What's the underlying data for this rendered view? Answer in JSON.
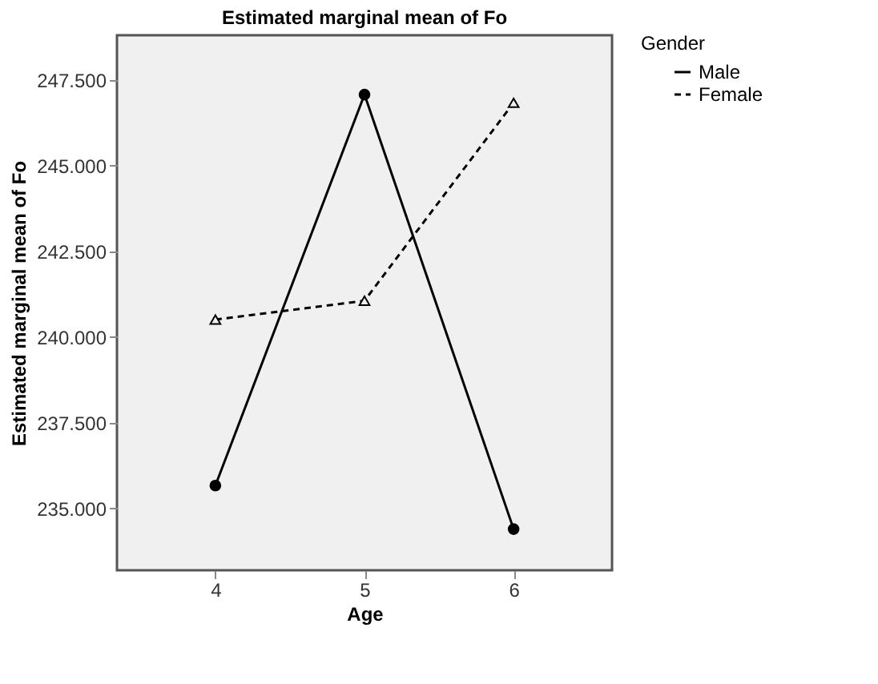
{
  "chart_data": {
    "type": "line",
    "title": "Estimated marginal mean of Fo",
    "xlabel": "Age",
    "ylabel": "Estimated marginal mean of Fo",
    "legend_title": "Gender",
    "categories": [
      "4",
      "5",
      "6"
    ],
    "series": [
      {
        "name": "Male",
        "color": "#000000",
        "values": [
          235.67,
          247.07,
          234.4
        ],
        "marker": "circle",
        "line_style": "solid"
      },
      {
        "name": "Female",
        "color": "#000000",
        "values": [
          240.51,
          241.06,
          246.83
        ],
        "marker": "triangle",
        "line_style": "dashed"
      }
    ],
    "ylim": [
      233.2,
      248.8
    ],
    "yticks": [
      {
        "value": 235,
        "label": "235.000"
      },
      {
        "value": 237.5,
        "label": "237.500"
      },
      {
        "value": 240,
        "label": "240.000"
      },
      {
        "value": 242.5,
        "label": "242.500"
      },
      {
        "value": 245,
        "label": "245.000"
      },
      {
        "value": 247.5,
        "label": "247.500"
      }
    ],
    "grid": false,
    "legend": "top right"
  }
}
